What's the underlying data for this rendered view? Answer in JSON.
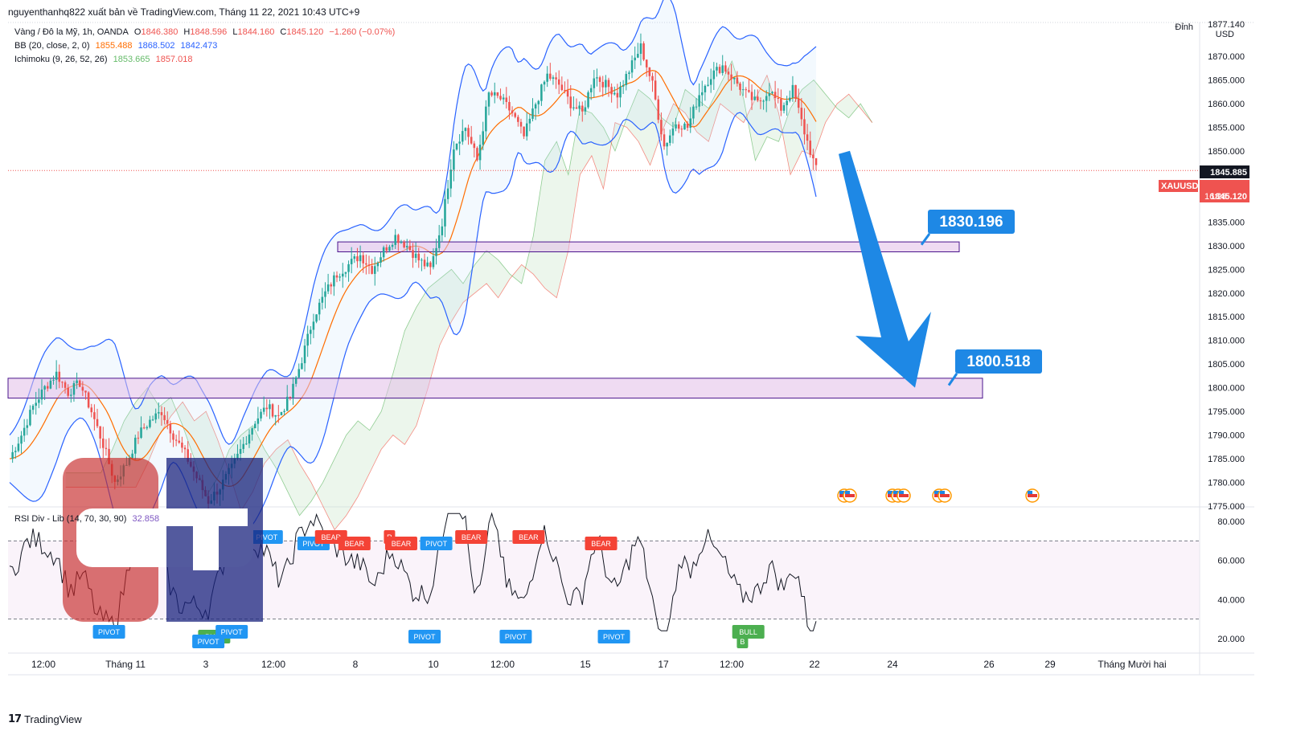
{
  "header": {
    "publish_line": "nguyenthanhq822 xuất bản về TradingView.com, Tháng 11 22, 2021 10:43 UTC+9"
  },
  "legend": {
    "symbol": "Vàng / Đô la Mỹ, 1h, OANDA",
    "open_label": "O",
    "open": "1846.380",
    "high_label": "H",
    "high": "1848.596",
    "low_label": "L",
    "low": "1844.160",
    "close_label": "C",
    "close": "1845.120",
    "change": "−1.260 (−0.07%)",
    "bb_label": "BB (20, close, 2, 0)",
    "bb_values": [
      "1855.488",
      "1868.502",
      "1842.473"
    ],
    "ichimoku_label": "Ichimoku (9, 26, 52, 26)",
    "ichimoku_values": [
      "1853.665",
      "1857.018"
    ],
    "rsi_label": "RSI Div - Lib (14, 70, 30, 90)",
    "rsi_value": "32.858"
  },
  "price_axis": {
    "unit": "USD",
    "top_label": "Đỉnh",
    "top_value": "1877.140",
    "ticks": [
      "1870.000",
      "1865.000",
      "1860.000",
      "1855.000",
      "1850.000",
      "1845.000",
      "1840.000",
      "1835.000",
      "1830.000",
      "1825.000",
      "1820.000",
      "1815.000",
      "1810.000",
      "1805.000",
      "1800.000",
      "1795.000",
      "1790.000",
      "1785.000",
      "1780.000",
      "1775.000"
    ],
    "last_price_tag": "1845.885",
    "symbol_tag": "XAUUSD",
    "current_price_tag": "1845.120",
    "countdown_tag": "16:28"
  },
  "rsi_axis": {
    "ticks": [
      "80.000",
      "60.000",
      "40.000",
      "20.000"
    ]
  },
  "time_axis": {
    "labels": [
      "12:00",
      "Tháng 11",
      "3",
      "12:00",
      "8",
      "10",
      "12:00",
      "15",
      "17",
      "12:00",
      "22",
      "24",
      "26",
      "29",
      "Tháng Mười hai"
    ]
  },
  "annotations": {
    "level_1": "1830.196",
    "level_2": "1800.518"
  },
  "signals": {
    "pivot": "PIVOT",
    "bear": "BEAR",
    "bull": "BULL",
    "partial_r": "R",
    "partial_b": "B"
  },
  "footer": {
    "brand": "TradingView"
  },
  "colors": {
    "up_candle": "#26a69a",
    "down_candle": "#ef5350",
    "bb_line": "#2962ff",
    "bb_basis": "#ff6d00",
    "ichimoku_lead_a": "#4caf50",
    "ichimoku_lead_b": "#f44336",
    "zone_fill": "#e1bee7",
    "arrow": "#1e88e5",
    "pivot_label": "#2196f3",
    "bear_label": "#f44336",
    "bull_label": "#4caf50"
  },
  "chart_data": [
    {
      "type": "candlestick",
      "title": "Vàng / Đô la Mỹ, 1h, OANDA",
      "ylabel": "USD",
      "ylim": [
        1775,
        1877.14
      ],
      "x_labels": [
        "12:00",
        "Tháng 11",
        "3",
        "12:00",
        "8",
        "10",
        "12:00",
        "15",
        "17",
        "12:00",
        "22",
        "24",
        "26",
        "29",
        "Tháng Mười hai"
      ],
      "close_path": [
        [
          0,
          1785
        ],
        [
          1,
          1790
        ],
        [
          2,
          1796
        ],
        [
          3,
          1800
        ],
        [
          4,
          1803
        ],
        [
          5,
          1799
        ],
        [
          6,
          1801
        ],
        [
          7,
          1795
        ],
        [
          8,
          1788
        ],
        [
          9,
          1780
        ],
        [
          10,
          1784
        ],
        [
          11,
          1790
        ],
        [
          12,
          1793
        ],
        [
          13,
          1795
        ],
        [
          14,
          1790
        ],
        [
          15,
          1786
        ],
        [
          16,
          1781
        ],
        [
          17,
          1776
        ],
        [
          18,
          1779
        ],
        [
          19,
          1783
        ],
        [
          20,
          1788
        ],
        [
          21,
          1793
        ],
        [
          22,
          1796
        ],
        [
          23,
          1794
        ],
        [
          24,
          1798
        ],
        [
          25,
          1806
        ],
        [
          26,
          1815
        ],
        [
          27,
          1820
        ],
        [
          28,
          1824
        ],
        [
          29,
          1826
        ],
        [
          30,
          1828
        ],
        [
          31,
          1825
        ],
        [
          32,
          1829
        ],
        [
          33,
          1832
        ],
        [
          34,
          1830
        ],
        [
          35,
          1827
        ],
        [
          36,
          1825
        ],
        [
          37,
          1835
        ],
        [
          38,
          1851
        ],
        [
          39,
          1855
        ],
        [
          40,
          1848
        ],
        [
          41,
          1862
        ],
        [
          42,
          1861
        ],
        [
          43,
          1858
        ],
        [
          44,
          1853
        ],
        [
          45,
          1860
        ],
        [
          46,
          1866
        ],
        [
          47,
          1864
        ],
        [
          48,
          1860
        ],
        [
          49,
          1858
        ],
        [
          50,
          1866
        ],
        [
          51,
          1864
        ],
        [
          52,
          1862
        ],
        [
          53,
          1867
        ],
        [
          54,
          1872
        ],
        [
          55,
          1864
        ],
        [
          56,
          1851
        ],
        [
          57,
          1856
        ],
        [
          58,
          1855
        ],
        [
          59,
          1862
        ],
        [
          60,
          1866
        ],
        [
          61,
          1868
        ],
        [
          62,
          1865
        ],
        [
          63,
          1862
        ],
        [
          64,
          1860
        ],
        [
          65,
          1863
        ],
        [
          66,
          1859
        ],
        [
          67,
          1863
        ],
        [
          68,
          1854
        ],
        [
          69,
          1846
        ]
      ],
      "bollinger": {
        "upper": "1868.502",
        "basis": "1855.488",
        "lower": "1842.473"
      },
      "ichimoku": {
        "lead_a": "1853.665",
        "lead_b": "1857.018"
      },
      "zones": [
        {
          "label": "1830.196",
          "low": 1828.7,
          "high": 1830.8
        },
        {
          "label": "1800.518",
          "low": 1797.8,
          "high": 1802.0
        }
      ],
      "projection": {
        "from": 1848,
        "to": 1800
      }
    },
    {
      "type": "line",
      "title": "RSI Div - Lib (14, 70, 30, 90)",
      "ylim": [
        13,
        87
      ],
      "overbought": 70,
      "oversold": 30,
      "last": 32.858,
      "signals": [
        {
          "x": 8.5,
          "kind": "PIVOT",
          "pos": "below"
        },
        {
          "x": 17.5,
          "kind": "BULL",
          "pos": "below"
        },
        {
          "x": 17.0,
          "kind": "PIVOT",
          "pos": "below"
        },
        {
          "x": 19.0,
          "kind": "PIVOT",
          "pos": "below"
        },
        {
          "x": 22.0,
          "kind": "PIVOT",
          "pos": "above"
        },
        {
          "x": 26.0,
          "kind": "PIVOT",
          "pos": "above"
        },
        {
          "x": 27.5,
          "kind": "BEAR",
          "pos": "above"
        },
        {
          "x": 29.5,
          "kind": "BEAR",
          "pos": "above"
        },
        {
          "x": 32.5,
          "kind": "R",
          "pos": "above"
        },
        {
          "x": 33.5,
          "kind": "BEAR",
          "pos": "above"
        },
        {
          "x": 35.5,
          "kind": "PIVOT",
          "pos": "below"
        },
        {
          "x": 36.5,
          "kind": "PIVOT",
          "pos": "above"
        },
        {
          "x": 39.5,
          "kind": "BEAR",
          "pos": "above"
        },
        {
          "x": 43.3,
          "kind": "PIVOT",
          "pos": "below"
        },
        {
          "x": 44.4,
          "kind": "BEAR",
          "pos": "above"
        },
        {
          "x": 50.6,
          "kind": "BEAR",
          "pos": "above"
        },
        {
          "x": 51.7,
          "kind": "PIVOT",
          "pos": "below"
        },
        {
          "x": 62.7,
          "kind": "B",
          "pos": "below"
        },
        {
          "x": 63.2,
          "kind": "BULL",
          "pos": "below"
        }
      ]
    }
  ]
}
